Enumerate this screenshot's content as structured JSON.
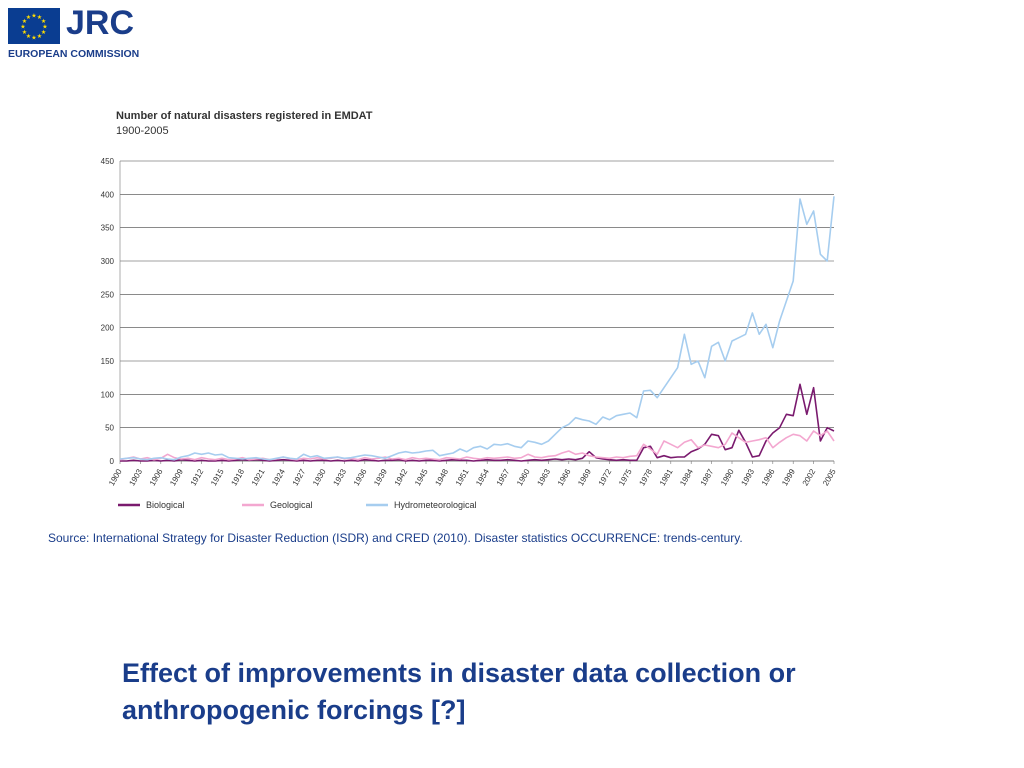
{
  "header": {
    "logo_text": "JRC",
    "organization": "EUROPEAN COMMISSION",
    "flag_color": "#0a3d91",
    "star_color": "#ffdd00",
    "brand_color": "#1a3d8a"
  },
  "chart": {
    "title": "Number of natural disasters registered in EMDAT",
    "subtitle": "1900-2005"
  },
  "chart_data": {
    "type": "line",
    "title": "Number of natural disasters registered in EMDAT",
    "subtitle": "1900-2005",
    "xlabel": "",
    "ylabel": "",
    "ylim": [
      0,
      450
    ],
    "yticks": [
      0,
      50,
      100,
      150,
      200,
      250,
      300,
      350,
      400,
      450
    ],
    "xtick_labels": [
      "1900",
      "1903",
      "1906",
      "1909",
      "1912",
      "1915",
      "1918",
      "1921",
      "1924",
      "1927",
      "1930",
      "1933",
      "1936",
      "1939",
      "1942",
      "1945",
      "1948",
      "1951",
      "1954",
      "1957",
      "1960",
      "1963",
      "1966",
      "1969",
      "1972",
      "1975",
      "1978",
      "1981",
      "1984",
      "1987",
      "1990",
      "1993",
      "1996",
      "1999",
      "2002",
      "2005"
    ],
    "grid": "horizontal",
    "legend_position": "bottom",
    "x": [
      1900,
      1901,
      1902,
      1903,
      1904,
      1905,
      1906,
      1907,
      1908,
      1909,
      1910,
      1911,
      1912,
      1913,
      1914,
      1915,
      1916,
      1917,
      1918,
      1919,
      1920,
      1921,
      1922,
      1923,
      1924,
      1925,
      1926,
      1927,
      1928,
      1929,
      1930,
      1931,
      1932,
      1933,
      1934,
      1935,
      1936,
      1937,
      1938,
      1939,
      1940,
      1941,
      1942,
      1943,
      1944,
      1945,
      1946,
      1947,
      1948,
      1949,
      1950,
      1951,
      1952,
      1953,
      1954,
      1955,
      1956,
      1957,
      1958,
      1959,
      1960,
      1961,
      1962,
      1963,
      1964,
      1965,
      1966,
      1967,
      1968,
      1969,
      1970,
      1971,
      1972,
      1973,
      1974,
      1975,
      1976,
      1977,
      1978,
      1979,
      1980,
      1981,
      1982,
      1983,
      1984,
      1985,
      1986,
      1987,
      1988,
      1989,
      1990,
      1991,
      1992,
      1993,
      1994,
      1995,
      1996,
      1997,
      1998,
      1999,
      2000,
      2001,
      2002,
      2003,
      2004,
      2005
    ],
    "series": [
      {
        "name": "Biological",
        "color": "#7a1a6e",
        "values": [
          0,
          0,
          1,
          0,
          0,
          1,
          0,
          1,
          0,
          2,
          1,
          0,
          1,
          0,
          0,
          1,
          0,
          1,
          2,
          1,
          2,
          1,
          0,
          1,
          2,
          1,
          0,
          1,
          0,
          1,
          1,
          0,
          1,
          0,
          1,
          0,
          2,
          1,
          0,
          1,
          1,
          2,
          0,
          1,
          0,
          1,
          1,
          0,
          1,
          2,
          1,
          1,
          0,
          1,
          2,
          1,
          1,
          2,
          1,
          0,
          1,
          2,
          1,
          2,
          3,
          2,
          3,
          2,
          4,
          14,
          5,
          3,
          2,
          1,
          2,
          1,
          1,
          20,
          22,
          5,
          8,
          5,
          6,
          6,
          14,
          18,
          25,
          40,
          38,
          17,
          20,
          46,
          28,
          6,
          8,
          30,
          42,
          50,
          70,
          68,
          115,
          70,
          110,
          30,
          50,
          45
        ]
      },
      {
        "name": "Geological",
        "color": "#f3a7d0",
        "values": [
          2,
          4,
          6,
          3,
          5,
          2,
          4,
          10,
          5,
          3,
          4,
          2,
          5,
          3,
          2,
          4,
          2,
          3,
          5,
          2,
          3,
          4,
          2,
          3,
          6,
          3,
          2,
          4,
          3,
          5,
          3,
          4,
          6,
          3,
          4,
          2,
          5,
          3,
          4,
          6,
          3,
          4,
          2,
          5,
          3,
          4,
          3,
          2,
          5,
          4,
          3,
          6,
          4,
          3,
          5,
          4,
          5,
          6,
          4,
          5,
          10,
          6,
          5,
          7,
          8,
          12,
          15,
          10,
          12,
          8,
          6,
          5,
          4,
          6,
          5,
          7,
          8,
          25,
          18,
          10,
          30,
          25,
          20,
          28,
          32,
          20,
          24,
          22,
          20,
          25,
          42,
          35,
          28,
          30,
          32,
          35,
          20,
          28,
          35,
          40,
          38,
          30,
          45,
          38,
          45,
          30
        ]
      },
      {
        "name": "Hydrometeorological",
        "color": "#a6cdef",
        "values": [
          3,
          4,
          5,
          3,
          2,
          4,
          5,
          3,
          2,
          6,
          8,
          12,
          10,
          12,
          9,
          10,
          5,
          4,
          3,
          4,
          5,
          3,
          2,
          4,
          6,
          4,
          3,
          10,
          6,
          8,
          4,
          5,
          6,
          4,
          5,
          7,
          9,
          8,
          6,
          4,
          8,
          12,
          14,
          12,
          13,
          15,
          16,
          8,
          10,
          12,
          18,
          14,
          20,
          22,
          18,
          25,
          24,
          26,
          22,
          20,
          30,
          28,
          25,
          30,
          40,
          50,
          55,
          65,
          62,
          60,
          55,
          66,
          62,
          68,
          70,
          72,
          65,
          105,
          106,
          95,
          110,
          125,
          140,
          190,
          145,
          150,
          125,
          172,
          178,
          150,
          180,
          185,
          190,
          222,
          190,
          205,
          170,
          210,
          240,
          270,
          393,
          355,
          375,
          310,
          300,
          397
        ]
      }
    ]
  },
  "source_note": "Source: International Strategy for Disaster Reduction (ISDR) and CRED (2010). Disaster statistics OCCURRENCE: trends-century.",
  "headline": "Effect of improvements in disaster data collection or anthropogenic forcings [?]"
}
